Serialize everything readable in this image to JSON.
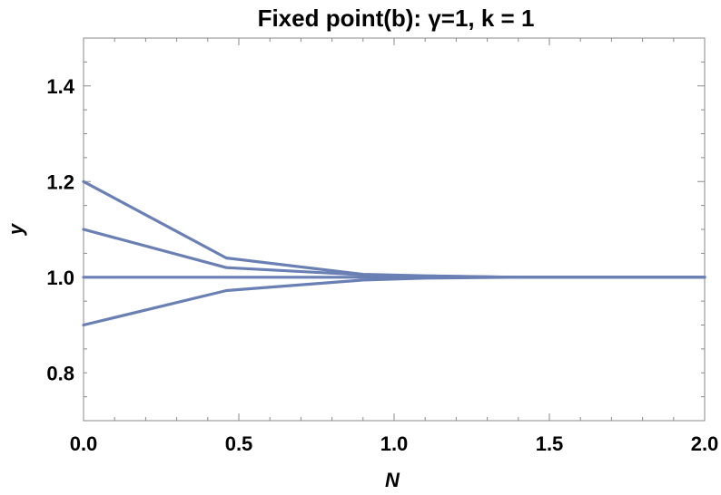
{
  "chart_data": {
    "type": "line",
    "title": "Fixed point(b): γ=1, k = 1",
    "xlabel": "N",
    "ylabel": "y",
    "xlim": [
      0,
      2
    ],
    "ylim": [
      0.7,
      1.5
    ],
    "x_ticks": [
      0.0,
      0.5,
      1.0,
      1.5,
      2.0
    ],
    "x_tick_labels": [
      "0.0",
      "0.5",
      "1.0",
      "1.5",
      "2.0"
    ],
    "y_ticks": [
      0.8,
      1.0,
      1.2,
      1.4
    ],
    "y_tick_labels": [
      "0.8",
      "1.0",
      "1.2",
      "1.4"
    ],
    "grid": false,
    "legend": "none",
    "line_color": "#6a80b4",
    "series": [
      {
        "x": [
          0,
          0.46,
          0.9,
          1.1,
          1.4,
          2.0
        ],
        "values": [
          1.2,
          1.04,
          1.006,
          1.003,
          1.0,
          1.0
        ]
      },
      {
        "x": [
          0,
          0.46,
          0.9,
          1.1,
          1.4,
          2.0
        ],
        "values": [
          1.1,
          1.02,
          1.005,
          1.002,
          1.0,
          1.0
        ]
      },
      {
        "x": [
          0,
          2.0
        ],
        "values": [
          1.0,
          1.0
        ]
      },
      {
        "x": [
          0,
          0.46,
          0.9,
          1.1,
          1.4,
          2.0
        ],
        "values": [
          0.9,
          0.972,
          0.994,
          0.998,
          1.0,
          1.0
        ]
      }
    ]
  }
}
